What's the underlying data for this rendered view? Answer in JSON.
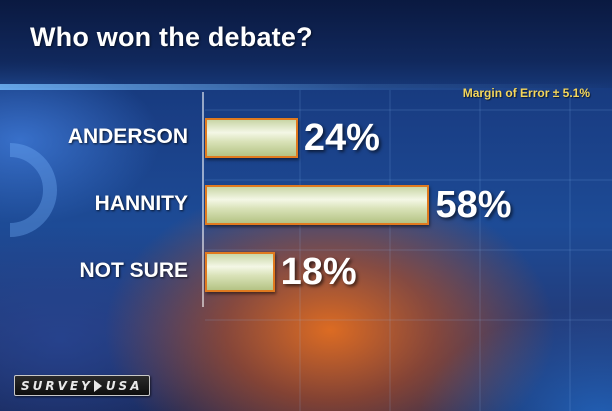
{
  "title": "Who won the debate?",
  "margin_of_error": "Margin of Error ± 5.1%",
  "logo": {
    "part1": "SURVEY",
    "part2": "USA"
  },
  "chart_data": {
    "type": "bar",
    "orientation": "horizontal",
    "title": "Who won the debate?",
    "categories": [
      "ANDERSON",
      "HANNITY",
      "NOT SURE"
    ],
    "values": [
      24,
      58,
      18
    ],
    "value_labels": [
      "24%",
      "58%",
      "18%"
    ],
    "xlim": [
      0,
      100
    ],
    "grid": true,
    "legend": "none",
    "annotation": "Margin of Error ± 5.1%"
  },
  "colors": {
    "bar_fill": "#e6edcc",
    "bar_border": "#e07a1f",
    "label_text": "#ffffff",
    "margin_text": "#f5d65a"
  }
}
